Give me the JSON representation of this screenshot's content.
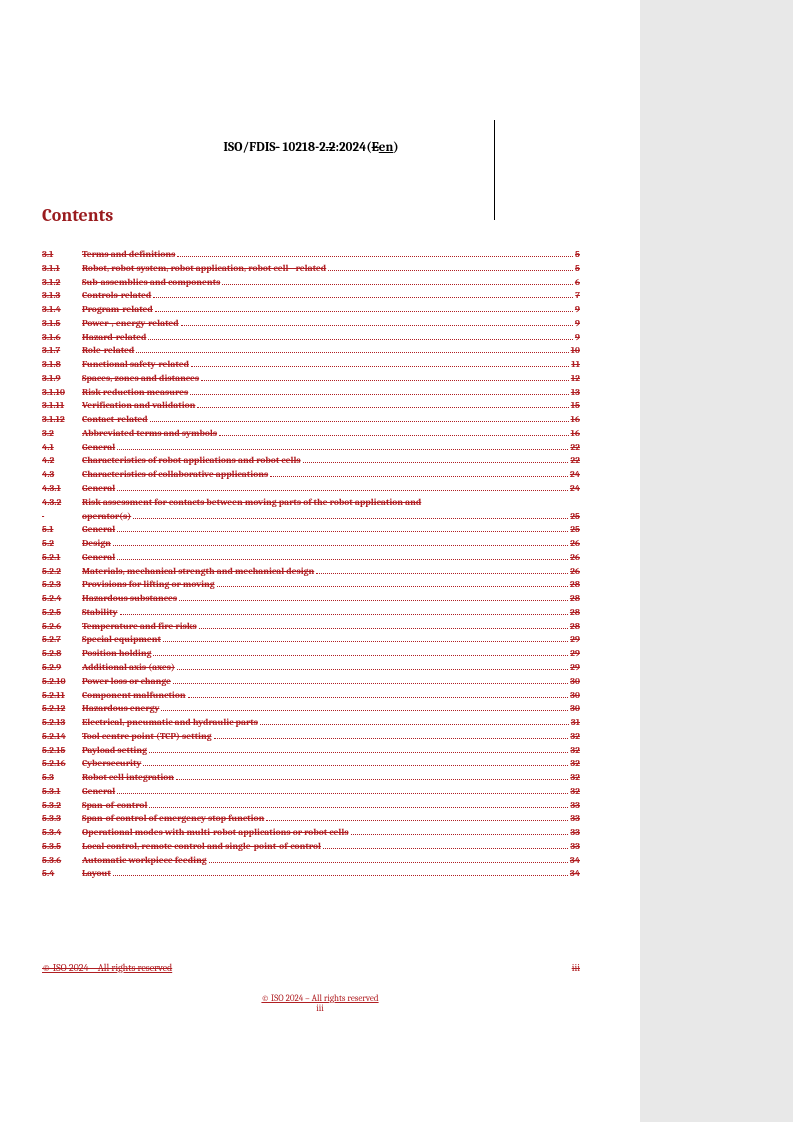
{
  "header": {
    "prefix": "ISO/FDIS",
    "strike1": "-",
    "mid": " 10218-2",
    "strike2": ".2",
    "suffix1": ":2024(",
    "strike3": "E",
    "lang": "en",
    "suffix2": ")"
  },
  "contentsTitle": "Contents",
  "toc": [
    {
      "num": "3.1",
      "title": "Terms and definitions",
      "page": "5",
      "indent": 0
    },
    {
      "num": "3.1.1",
      "title": "Robot, robot system, robot application, robot cell - related",
      "page": "5",
      "indent": 0
    },
    {
      "num": "3.1.2",
      "title": "Sub-assemblies and components",
      "page": "6",
      "indent": 0
    },
    {
      "num": "3.1.3",
      "title": "Controls-related",
      "page": "7",
      "indent": 0
    },
    {
      "num": "3.1.4",
      "title": "Program-related",
      "page": "9",
      "indent": 0
    },
    {
      "num": "3.1.5",
      "title": "Power-, energy-related",
      "page": "9",
      "indent": 0
    },
    {
      "num": "3.1.6",
      "title": "Hazard-related",
      "page": "9",
      "indent": 0
    },
    {
      "num": "3.1.7",
      "title": "Role-related",
      "page": "10",
      "indent": 0
    },
    {
      "num": "3.1.8",
      "title": "Functional safety-related",
      "page": "11",
      "indent": 0
    },
    {
      "num": "3.1.9",
      "title": "Spaces, zones and distances",
      "page": "12",
      "indent": 0
    },
    {
      "num": "3.1.10",
      "title": "Risk reduction measures",
      "page": "13",
      "indent": 0
    },
    {
      "num": "3.1.11",
      "title": "Verification and validation",
      "page": "15",
      "indent": 0
    },
    {
      "num": "3.1.12",
      "title": "Contact-related",
      "page": "16",
      "indent": 0
    },
    {
      "num": "3.2",
      "title": "Abbreviated terms and symbols",
      "page": "16",
      "indent": 0
    },
    {
      "num": "4.1",
      "title": "General",
      "page": "22",
      "indent": 0
    },
    {
      "num": "4.2",
      "title": "Characteristics of robot applications and robot cells",
      "page": "22",
      "indent": 0
    },
    {
      "num": "4.3",
      "title": "Characteristics of collaborative applications",
      "page": "24",
      "indent": 0
    },
    {
      "num": "4.3.1",
      "title": "General",
      "page": "24",
      "indent": 0
    },
    {
      "num": "4.3.2",
      "title": "Risk assessment for contacts between moving parts of the robot application and operator(s)",
      "page": "25",
      "indent": 0,
      "wrap": true
    },
    {
      "num": "5.1",
      "title": "General",
      "page": "25",
      "indent": 0
    },
    {
      "num": "5.2",
      "title": "Design",
      "page": "26",
      "indent": 0
    },
    {
      "num": "5.2.1",
      "title": "General",
      "page": "26",
      "indent": 0
    },
    {
      "num": "5.2.2",
      "title": "Materials, mechanical strength and mechanical design",
      "page": "26",
      "indent": 0
    },
    {
      "num": "5.2.3",
      "title": "Provisions for lifting or moving",
      "page": "28",
      "indent": 0
    },
    {
      "num": "5.2.4",
      "title": "Hazardous substances",
      "page": "28",
      "indent": 0
    },
    {
      "num": "5.2.5",
      "title": "Stability",
      "page": "28",
      "indent": 0
    },
    {
      "num": "5.2.6",
      "title": "Temperature and fire risks",
      "page": "28",
      "indent": 0
    },
    {
      "num": "5.2.7",
      "title": "Special equipment",
      "page": "29",
      "indent": 0
    },
    {
      "num": "5.2.8",
      "title": "Position holding",
      "page": "29",
      "indent": 0
    },
    {
      "num": "5.2.9",
      "title": "Additional axis (axes)",
      "page": "29",
      "indent": 0
    },
    {
      "num": "5.2.10",
      "title": "Power loss or change",
      "page": "30",
      "indent": 0
    },
    {
      "num": "5.2.11",
      "title": "Component malfunction",
      "page": "30",
      "indent": 0
    },
    {
      "num": "5.2.12",
      "title": "Hazardous energy",
      "page": "30",
      "indent": 0
    },
    {
      "num": "5.2.13",
      "title": "Electrical, pneumatic and hydraulic parts",
      "page": "31",
      "indent": 0
    },
    {
      "num": "5.2.14",
      "title": "Tool centre point (TCP) setting",
      "page": "32",
      "indent": 0
    },
    {
      "num": "5.2.15",
      "title": "Payload setting",
      "page": "32",
      "indent": 0
    },
    {
      "num": "5.2.16",
      "title": "Cybersecurity",
      "page": "32",
      "indent": 0
    },
    {
      "num": "5.3",
      "title": "Robot cell integration",
      "page": "32",
      "indent": 0
    },
    {
      "num": "5.3.1",
      "title": "General",
      "page": "32",
      "indent": 0
    },
    {
      "num": "5.3.2",
      "title": "Span-of-control",
      "page": "33",
      "indent": 0
    },
    {
      "num": "5.3.3",
      "title": "Span-of control of emergency stop function",
      "page": "33",
      "indent": 0
    },
    {
      "num": "5.3.4",
      "title": "Operational modes with multi-robot applications or robot cells",
      "page": "33",
      "indent": 0
    },
    {
      "num": "5.3.5",
      "title": "Local control, remote control and single-point-of-control",
      "page": "33",
      "indent": 0
    },
    {
      "num": "5.3.6",
      "title": "Automatic workpiece feeding",
      "page": "34",
      "indent": 0
    },
    {
      "num": "5.4",
      "title": "Layout",
      "page": "34",
      "indent": 0
    }
  ],
  "footer": {
    "copyright": "© ISO 2024 – All rights reserved",
    "pageNum": "iii"
  }
}
